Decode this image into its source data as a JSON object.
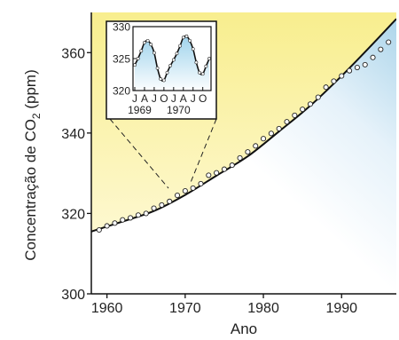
{
  "chart_data": {
    "type": "line",
    "xlabel": "Ano",
    "ylabel_main": "Concentração de CO",
    "ylabel_subscript": "2",
    "ylabel_unit": " (ppm)",
    "xlim": [
      1958,
      1997
    ],
    "ylim": [
      300,
      370
    ],
    "x_ticks": [
      1960,
      1970,
      1980,
      1990
    ],
    "y_ticks": [
      300,
      320,
      340,
      360
    ],
    "fill_colors": {
      "above": "#fbf3a6",
      "below": "#4aa6d2"
    },
    "series": [
      {
        "x": [
          1959,
          1960,
          1961,
          1962,
          1963,
          1964,
          1965,
          1966,
          1967,
          1968,
          1969,
          1970,
          1971,
          1972,
          1973,
          1974,
          1975,
          1976,
          1977,
          1978,
          1979,
          1980,
          1981,
          1982,
          1983,
          1984,
          1985,
          1986,
          1987,
          1988,
          1989,
          1990,
          1991,
          1992,
          1993,
          1994,
          1995,
          1996
        ],
        "y": [
          315.9,
          316.9,
          317.6,
          318.4,
          318.9,
          319.6,
          320.0,
          321.3,
          322.1,
          323.0,
          324.5,
          325.6,
          326.3,
          327.4,
          329.5,
          330.1,
          331.0,
          332.0,
          333.8,
          335.3,
          336.8,
          338.6,
          339.9,
          341.1,
          342.8,
          344.4,
          345.9,
          347.2,
          348.9,
          351.4,
          352.9,
          354.2,
          355.5,
          356.3,
          357.0,
          358.8,
          360.8,
          362.6
        ]
      }
    ],
    "trend": {
      "x": [
        1958,
        1962,
        1966,
        1970,
        1974,
        1978,
        1982,
        1986,
        1990,
        1994,
        1997
      ],
      "y": [
        315.5,
        318.0,
        320.6,
        324.6,
        329.4,
        334.2,
        340.4,
        346.8,
        354.2,
        362.2,
        368.4
      ]
    },
    "inset": {
      "type": "line",
      "ylim": [
        320,
        330
      ],
      "y_ticks": [
        320,
        325,
        330
      ],
      "month_labels": [
        "J",
        "A",
        "J",
        "O",
        "J",
        "A",
        "J",
        "O"
      ],
      "year_labels": [
        "1969",
        "1970"
      ],
      "x": [
        0,
        1,
        2,
        3,
        4,
        5,
        6,
        7,
        8,
        9,
        10,
        11,
        12,
        13,
        14,
        15,
        16,
        17,
        18,
        19,
        20,
        21,
        22,
        23
      ],
      "y": [
        324.0,
        325.0,
        326.2,
        327.5,
        327.8,
        327.2,
        325.9,
        323.5,
        321.8,
        321.6,
        322.8,
        323.9,
        324.8,
        325.8,
        327.0,
        328.3,
        328.5,
        327.8,
        326.5,
        324.4,
        322.8,
        322.6,
        323.8,
        325.0
      ]
    }
  }
}
